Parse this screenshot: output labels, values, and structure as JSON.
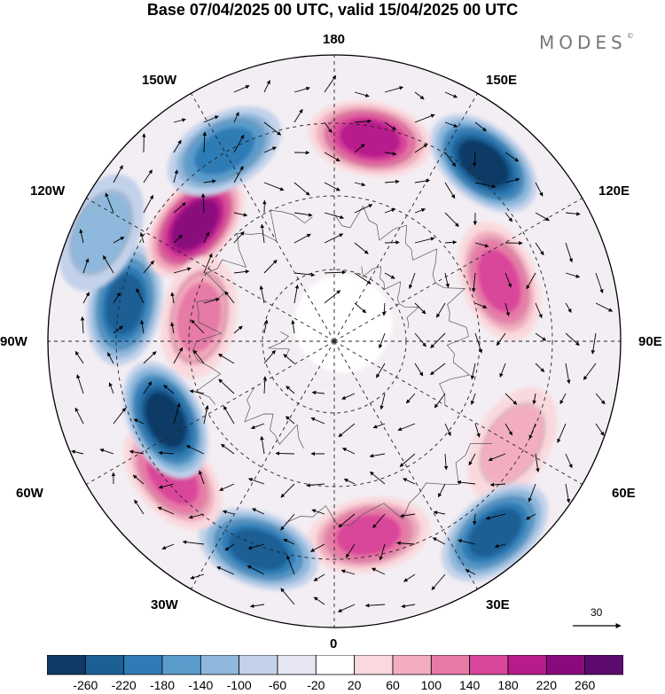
{
  "title": "Base 07/04/2025 00 UTC, valid 15/04/2025 00 UTC",
  "brand": "MODES",
  "brand_mark": "©",
  "map": {
    "projection": "north-polar-stereographic",
    "longitude_labels": [
      {
        "key": "180",
        "text": "180"
      },
      {
        "key": "150W",
        "text": "150W"
      },
      {
        "key": "150E",
        "text": "150E"
      },
      {
        "key": "120W",
        "text": "120W"
      },
      {
        "key": "120E",
        "text": "120E"
      },
      {
        "key": "90W",
        "text": "90W"
      },
      {
        "key": "90E",
        "text": "90E"
      },
      {
        "key": "60W",
        "text": "60W"
      },
      {
        "key": "60E",
        "text": "60E"
      },
      {
        "key": "30W",
        "text": "30W"
      },
      {
        "key": "30E",
        "text": "30E"
      },
      {
        "key": "0",
        "text": "0"
      }
    ],
    "anomaly_centers": [
      {
        "lon": 170,
        "value": 200,
        "sign": "positive"
      },
      {
        "lon": 140,
        "value": -240,
        "sign": "negative"
      },
      {
        "lon": 110,
        "value": 170,
        "sign": "positive"
      },
      {
        "lon": 60,
        "value": 60,
        "sign": "positive"
      },
      {
        "lon": 40,
        "value": -200,
        "sign": "negative"
      },
      {
        "lon": 10,
        "value": 160,
        "sign": "positive"
      },
      {
        "lon": -20,
        "value": -180,
        "sign": "negative"
      },
      {
        "lon": -50,
        "value": 170,
        "sign": "positive"
      },
      {
        "lon": -65,
        "value": -220,
        "sign": "negative"
      },
      {
        "lon": -100,
        "value": -180,
        "sign": "negative"
      },
      {
        "lon": -130,
        "value": 240,
        "sign": "positive"
      },
      {
        "lon": -150,
        "value": -140,
        "sign": "negative"
      },
      {
        "lon": -115,
        "value": -80,
        "sign": "negative"
      },
      {
        "lon": -100,
        "value": 100,
        "sign": "positive"
      }
    ]
  },
  "reference_vector": {
    "value": "30"
  },
  "colorbar": {
    "labels": [
      "-260",
      "-220",
      "-180",
      "-140",
      "-100",
      "-60",
      "-20",
      "20",
      "60",
      "100",
      "140",
      "180",
      "220",
      "260"
    ],
    "colors": [
      "#0d3b66",
      "#1b5f95",
      "#2f7bb5",
      "#5a9ccc",
      "#8eb8dc",
      "#c3d2ea",
      "#e6e5f2",
      "#ffffff",
      "#f9d9dd",
      "#f2aec0",
      "#e77aa6",
      "#d9479a",
      "#b81b8c",
      "#8a0a7e",
      "#5c0a6e"
    ]
  }
}
